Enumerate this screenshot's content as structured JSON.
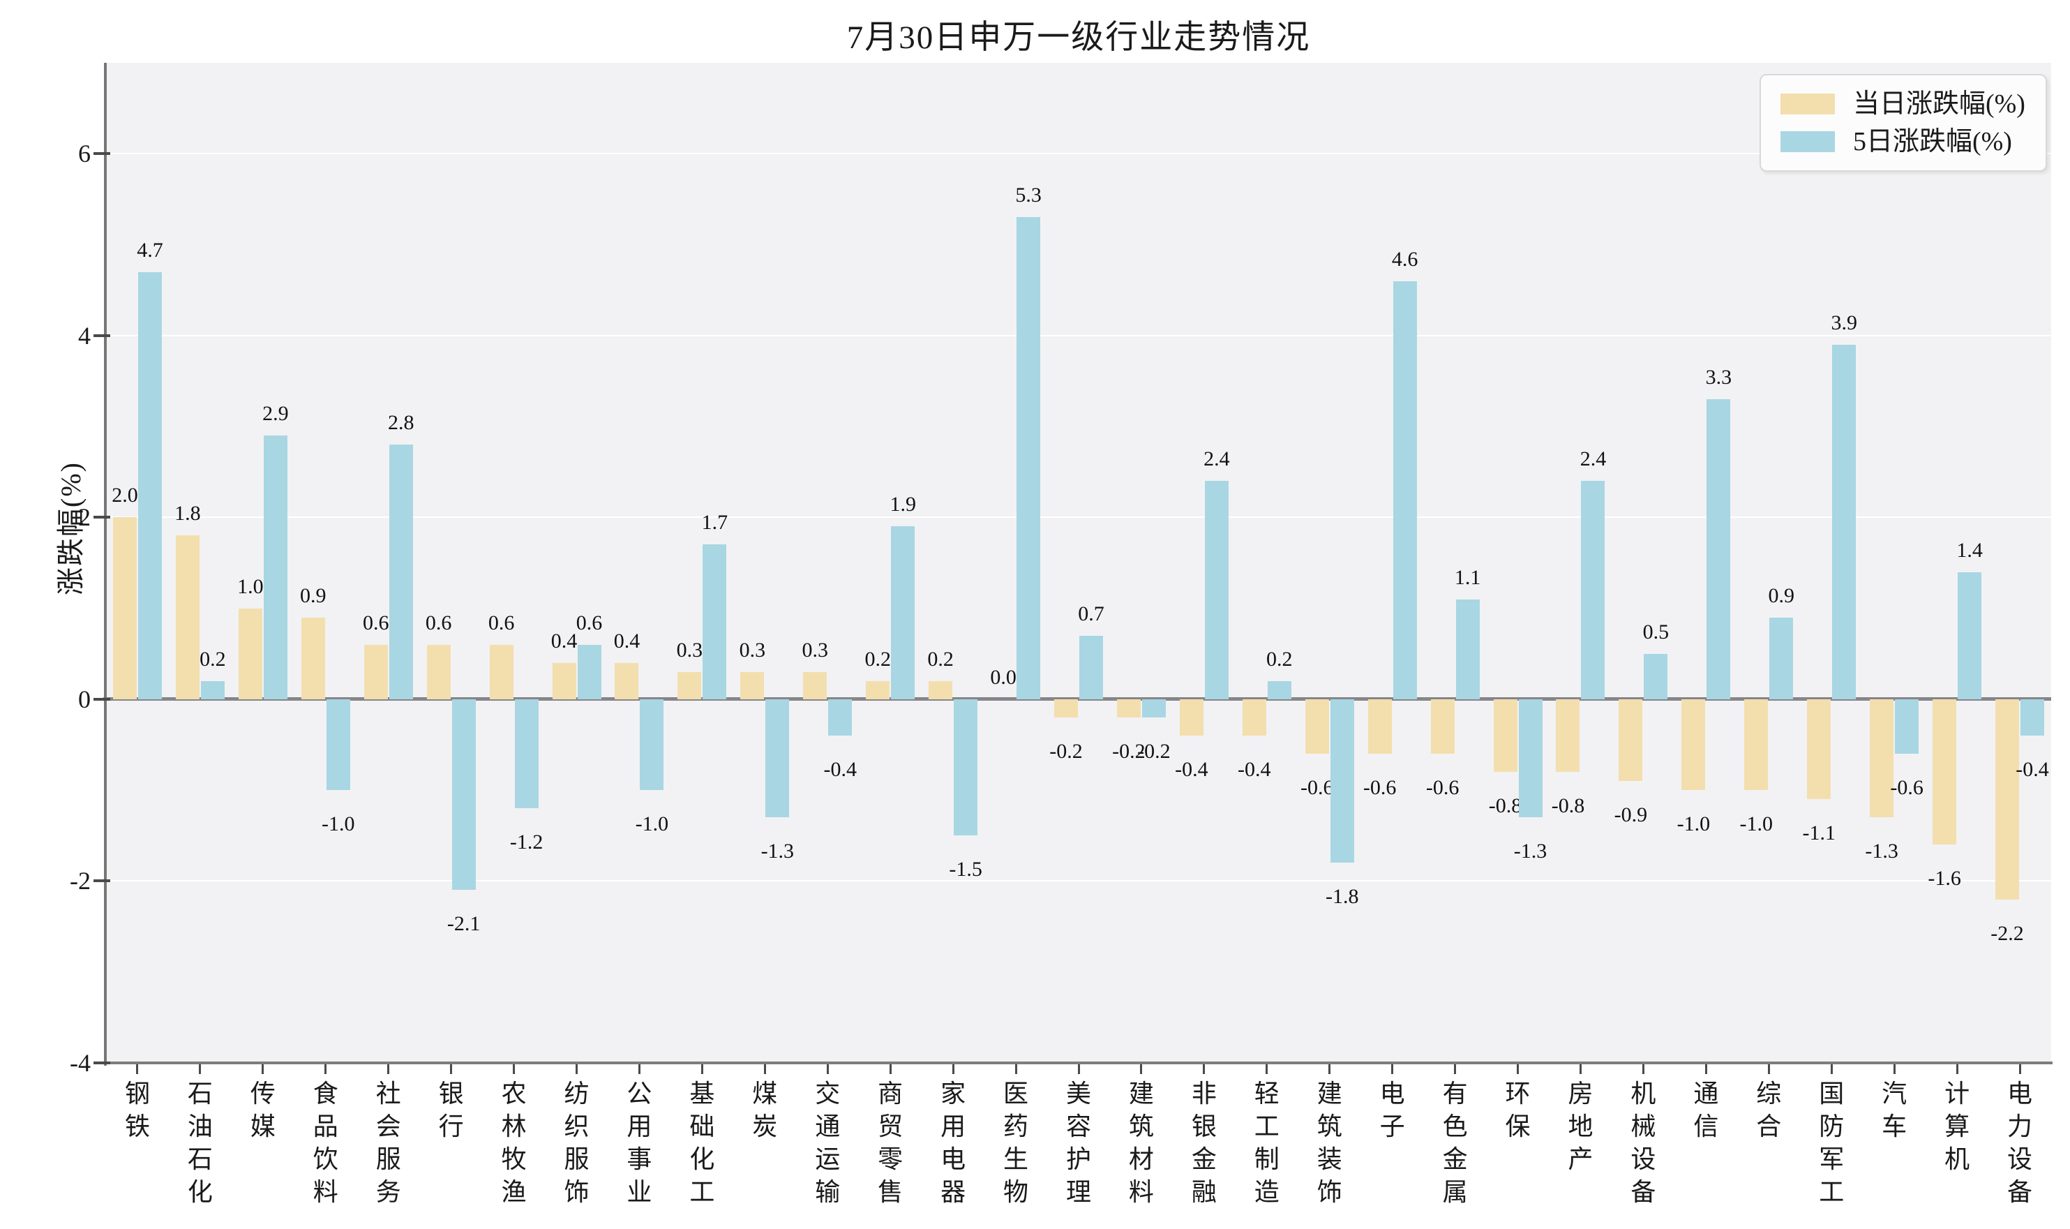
{
  "title": "7月30日申万一级行业走势情况",
  "y_axis_label": "涨跌幅(%)",
  "colors": {
    "daily_bar": "#f3deae",
    "five_day_bar": "#a9d6e3",
    "plot_background": "#f2f2f4",
    "zero_line": "#85858a",
    "axis_spine": "#767676",
    "gridline": "#ffffff"
  },
  "chart_data": {
    "type": "bar",
    "title": "7月30日申万一级行业走势情况",
    "xlabel": "",
    "ylabel": "涨跌幅(%)",
    "ylim": [
      -4,
      7
    ],
    "yticks": [
      -4,
      -2,
      0,
      2,
      4,
      6
    ],
    "gridlines_at": [
      6,
      4,
      2,
      -2
    ],
    "grid": "on",
    "legend_position": "upper right",
    "value_labels": "one decimal, above positive bars and below negative bars",
    "categories": [
      "钢铁",
      "石油石化",
      "传媒",
      "食品饮料",
      "社会服务",
      "银行",
      "农林牧渔",
      "纺织服饰",
      "公用事业",
      "基础化工",
      "煤炭",
      "交通运输",
      "商贸零售",
      "家用电器",
      "医药生物",
      "美容护理",
      "建筑材料",
      "非银金融",
      "轻工制造",
      "建筑装饰",
      "电子",
      "有色金属",
      "环保",
      "房地产",
      "机械设备",
      "通信",
      "综合",
      "国防军工",
      "汽车",
      "计算机",
      "电力设备"
    ],
    "series": [
      {
        "name": "当日涨跌幅(%)",
        "color": "#f3deae",
        "values": [
          2.0,
          1.8,
          1.0,
          0.9,
          0.6,
          0.6,
          0.6,
          0.4,
          0.4,
          0.3,
          0.3,
          0.3,
          0.2,
          0.2,
          0.0,
          -0.2,
          -0.2,
          -0.4,
          -0.4,
          -0.6,
          -0.6,
          -0.6,
          -0.8,
          -0.8,
          -0.9,
          -1.0,
          -1.0,
          -1.1,
          -1.3,
          -1.6,
          -2.2
        ]
      },
      {
        "name": "5日涨跌幅(%)",
        "color": "#a9d6e3",
        "values": [
          4.7,
          0.2,
          2.9,
          -1.0,
          2.8,
          -2.1,
          -1.2,
          0.6,
          -1.0,
          1.7,
          -1.3,
          -0.4,
          1.9,
          -1.5,
          5.3,
          0.7,
          -0.2,
          2.4,
          0.2,
          -1.8,
          4.6,
          1.1,
          -1.3,
          2.4,
          0.5,
          3.3,
          0.9,
          3.9,
          -0.6,
          1.4,
          -0.4
        ]
      }
    ]
  }
}
